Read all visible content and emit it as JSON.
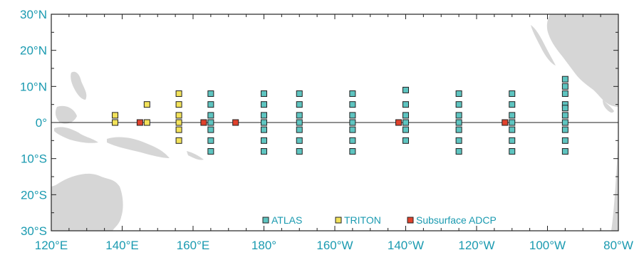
{
  "colors": {
    "label": "#1a9ab0",
    "land": "#d6d6d6",
    "frame": "#222222",
    "atlas": "#5ec4c0",
    "triton": "#f2e25a",
    "adcp": "#e0412c",
    "marker_edge": "#222222"
  },
  "axes": {
    "x_ticks": [
      "120°E",
      "140°E",
      "160°E",
      "180°",
      "160°W",
      "140°W",
      "120°W",
      "100°W",
      "80°W"
    ],
    "y_ticks": [
      "30°N",
      "20°N",
      "10°N",
      "0°",
      "10°S",
      "20°S",
      "30°S"
    ]
  },
  "legend": [
    {
      "label": "ATLAS",
      "color": "#5ec4c0"
    },
    {
      "label": "TRITON",
      "color": "#f2e25a"
    },
    {
      "label": "Subsurface ADCP",
      "color": "#e0412c"
    }
  ],
  "moorings": {
    "atlas": [
      {
        "lon": 165,
        "lats": [
          8,
          5,
          2,
          0,
          -2,
          -5,
          -8
        ]
      },
      {
        "lon": 180,
        "lats": [
          8,
          5,
          2,
          0,
          -2,
          -5,
          -8
        ]
      },
      {
        "lon": 190,
        "lats": [
          8,
          5,
          2,
          0,
          -2,
          -5,
          -8
        ]
      },
      {
        "lon": 205,
        "lats": [
          8,
          5,
          2,
          0,
          -2,
          -5,
          -8
        ]
      },
      {
        "lon": 220,
        "lats": [
          9,
          5,
          2,
          0,
          -2,
          -5
        ]
      },
      {
        "lon": 235,
        "lats": [
          8,
          5,
          2,
          0,
          -2,
          -5,
          -8
        ]
      },
      {
        "lon": 250,
        "lats": [
          8,
          5,
          2,
          0,
          -2,
          -5,
          -8
        ]
      },
      {
        "lon": 265,
        "lats": [
          12,
          10,
          8,
          5,
          4,
          2,
          0,
          -2,
          -5,
          -8
        ]
      }
    ],
    "triton": [
      {
        "lon": 138,
        "lats": [
          2,
          0
        ]
      },
      {
        "lon": 147,
        "lats": [
          5,
          0
        ]
      },
      {
        "lon": 156,
        "lats": [
          8,
          5,
          2,
          0,
          -2,
          -5
        ]
      }
    ],
    "adcp": [
      {
        "lon": 145,
        "lat": 0
      },
      {
        "lon": 163,
        "lat": 0
      },
      {
        "lon": 172,
        "lat": 0
      },
      {
        "lon": 218,
        "lat": 0
      },
      {
        "lon": 248,
        "lat": 0
      }
    ]
  }
}
